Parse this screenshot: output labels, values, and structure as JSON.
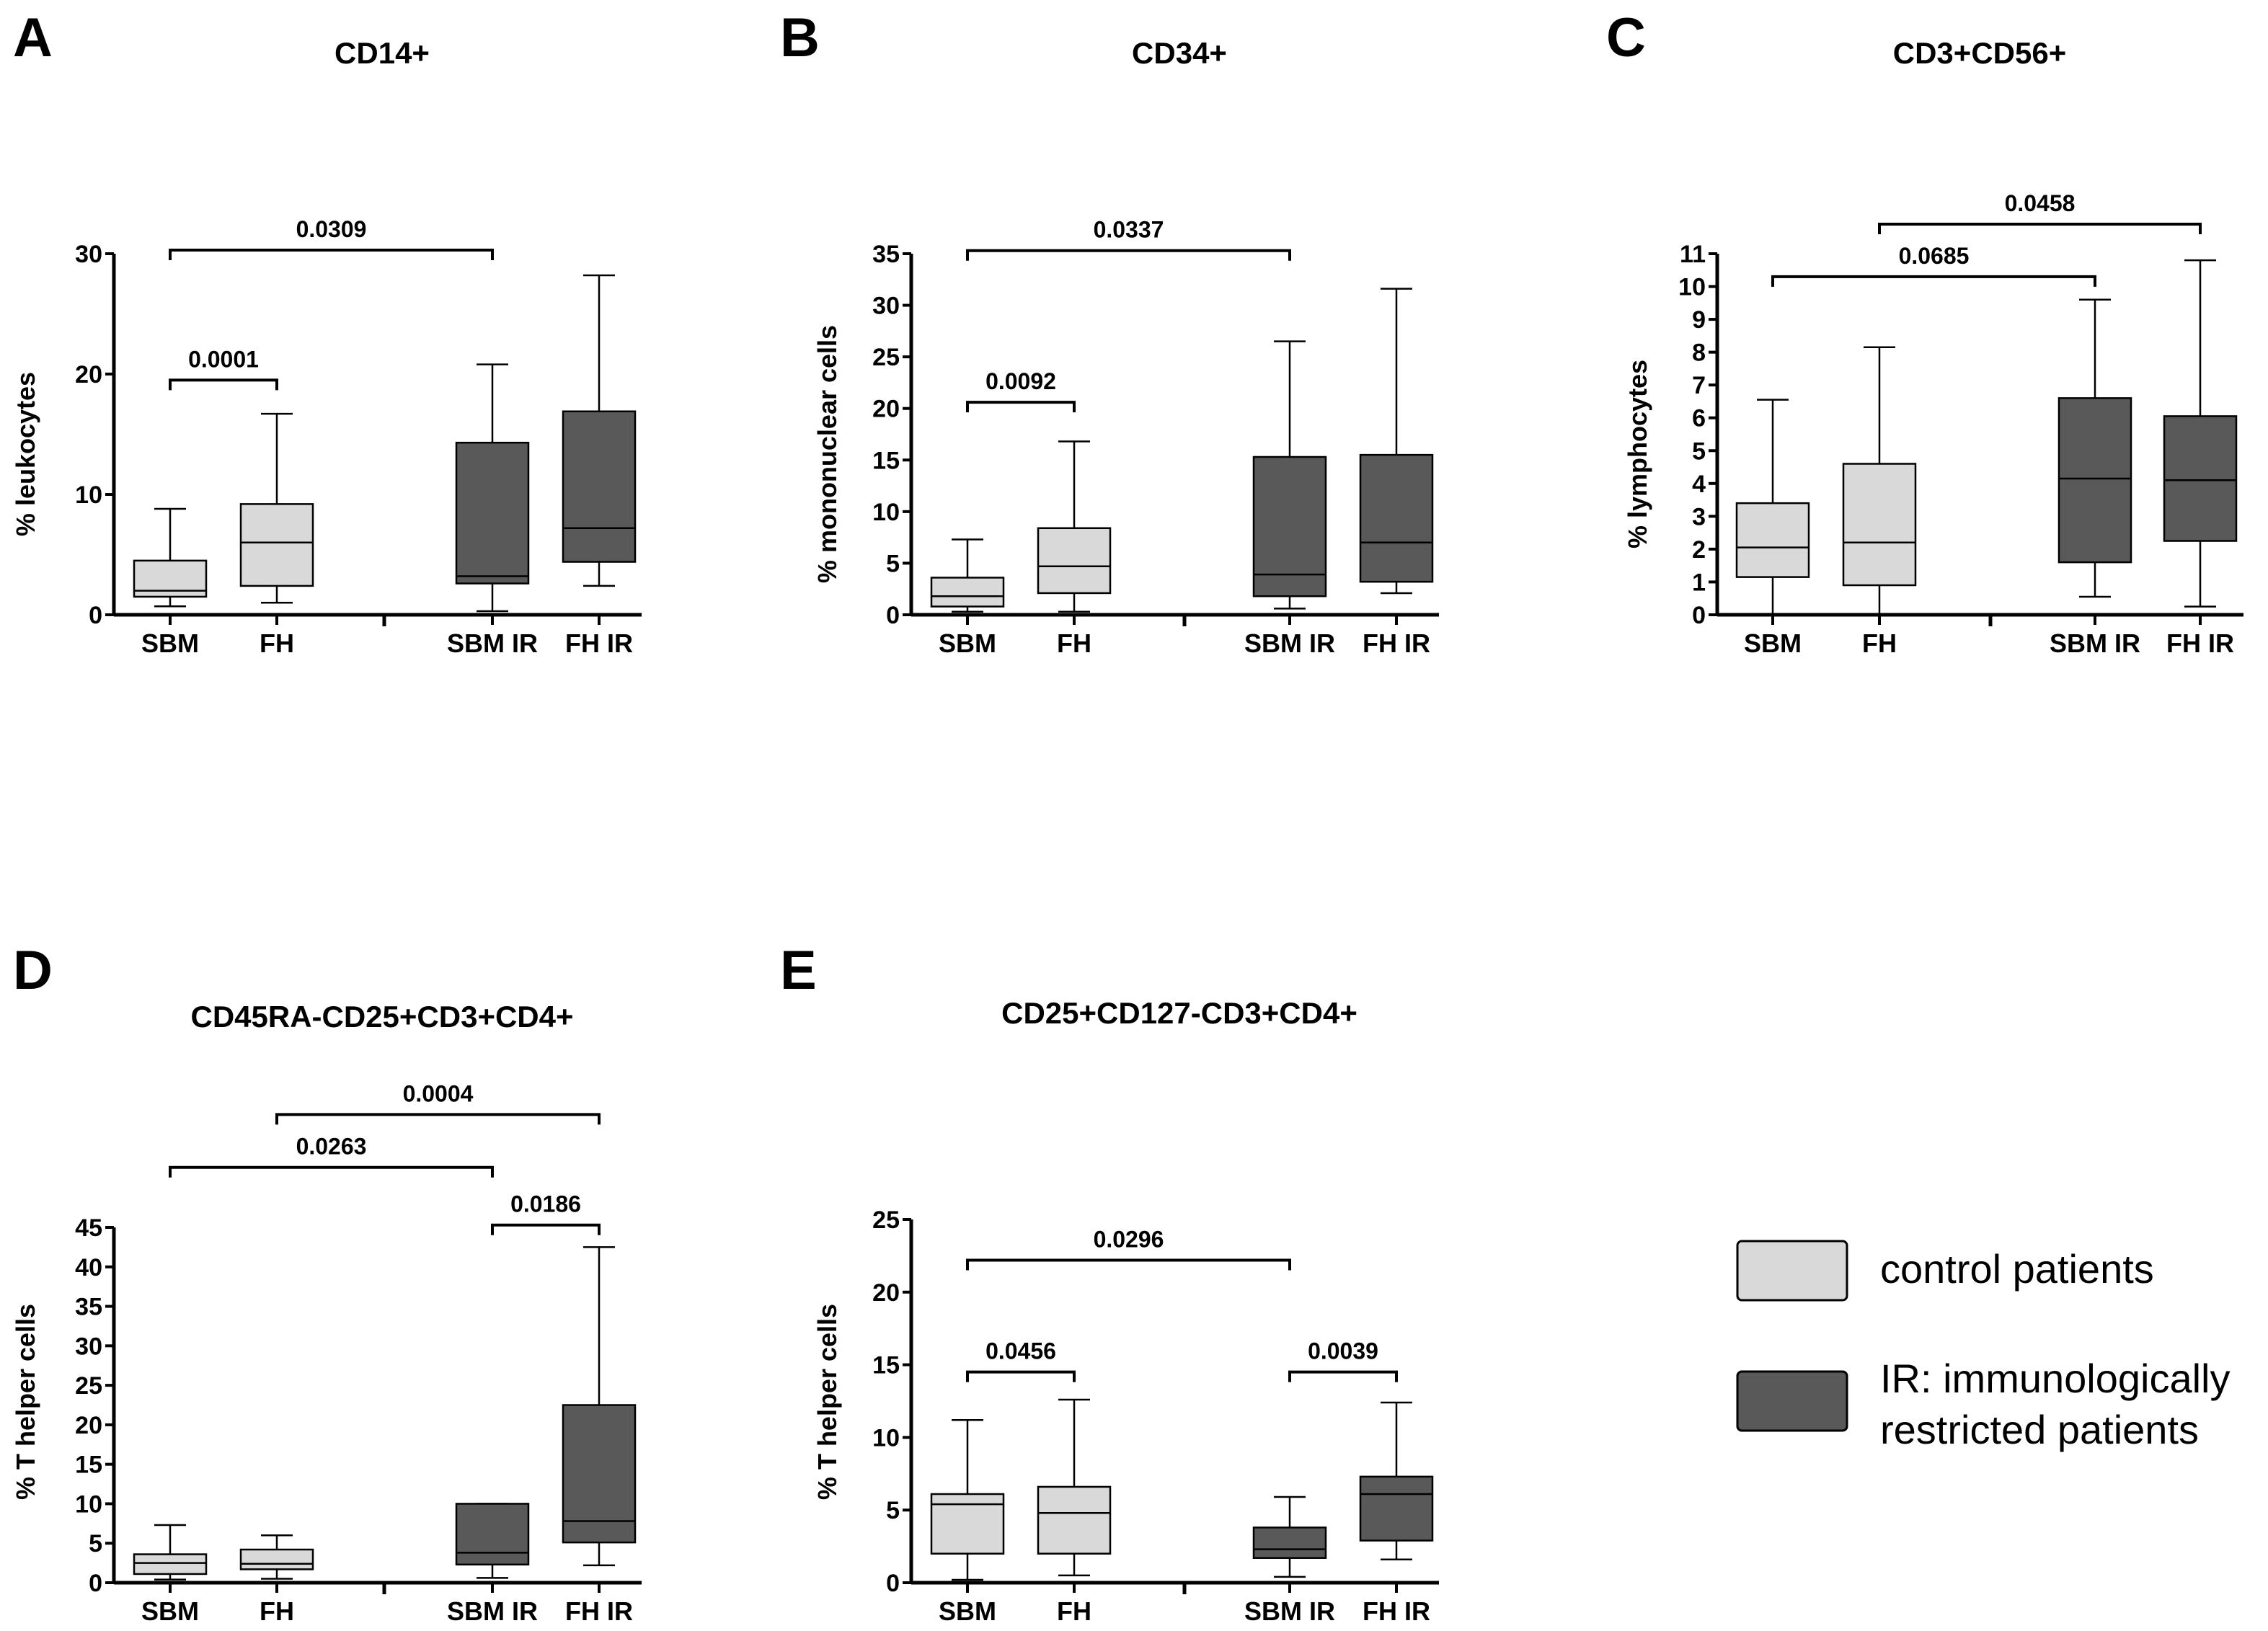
{
  "colors": {
    "control": "#d9d9d9",
    "ir": "#595959",
    "line": "#000000"
  },
  "legend": {
    "control_label": "control patients",
    "ir_label_line1": "IR: immunologically",
    "ir_label_line2": "restricted patients"
  },
  "chart_data": [
    {
      "panel": "A",
      "type": "boxplot",
      "title": "CD14+",
      "ylabel": "% leukocytes",
      "ylim": [
        0,
        30
      ],
      "yticks": [
        0,
        10,
        20,
        30
      ],
      "categories": [
        "SBM",
        "FH",
        "SBM IR",
        "FH IR"
      ],
      "groups": [
        "control",
        "control",
        "ir",
        "ir"
      ],
      "boxes": [
        {
          "min": 0.7,
          "q1": 1.5,
          "median": 2.0,
          "q3": 4.5,
          "max": 8.8
        },
        {
          "min": 1.0,
          "q1": 2.4,
          "median": 6.0,
          "q3": 9.2,
          "max": 16.7
        },
        {
          "min": 0.3,
          "q1": 2.6,
          "median": 3.2,
          "q3": 14.3,
          "max": 20.8
        },
        {
          "min": 2.4,
          "q1": 4.4,
          "median": 7.2,
          "q3": 16.9,
          "max": 28.2
        }
      ],
      "brackets": [
        {
          "from": 0,
          "to": 1,
          "y": 19.5,
          "label": "0.0001"
        },
        {
          "from": 0,
          "to": 2,
          "y": 30.3,
          "label": "0.0309"
        }
      ]
    },
    {
      "panel": "B",
      "type": "boxplot",
      "title": "CD34+",
      "ylabel": "% mononuclear cells",
      "ylim": [
        0,
        35
      ],
      "yticks": [
        0,
        5,
        10,
        15,
        20,
        25,
        30,
        35
      ],
      "categories": [
        "SBM",
        "FH",
        "SBM IR",
        "FH IR"
      ],
      "groups": [
        "control",
        "control",
        "ir",
        "ir"
      ],
      "boxes": [
        {
          "min": 0.3,
          "q1": 0.8,
          "median": 1.8,
          "q3": 3.6,
          "max": 7.3
        },
        {
          "min": 0.3,
          "q1": 2.1,
          "median": 4.7,
          "q3": 8.4,
          "max": 16.8
        },
        {
          "min": 0.6,
          "q1": 1.8,
          "median": 3.9,
          "q3": 15.3,
          "max": 26.5
        },
        {
          "min": 2.1,
          "q1": 3.2,
          "median": 7.0,
          "q3": 15.5,
          "max": 31.6
        }
      ],
      "brackets": [
        {
          "from": 0,
          "to": 1,
          "y": 20.6,
          "label": "0.0092"
        },
        {
          "from": 0,
          "to": 2,
          "y": 35.3,
          "label": "0.0337"
        }
      ]
    },
    {
      "panel": "C",
      "type": "boxplot",
      "title": "CD3+CD56+",
      "ylabel": "% lymphocytes",
      "ylim": [
        0,
        11
      ],
      "yticks": [
        0,
        1,
        2,
        3,
        4,
        5,
        6,
        7,
        8,
        9,
        10,
        11
      ],
      "categories": [
        "SBM",
        "FH",
        "SBM IR",
        "FH IR"
      ],
      "groups": [
        "control",
        "control",
        "ir",
        "ir"
      ],
      "boxes": [
        {
          "min": 0.0,
          "q1": 1.15,
          "median": 2.05,
          "q3": 3.4,
          "max": 6.55
        },
        {
          "min": 0.0,
          "q1": 0.9,
          "median": 2.2,
          "q3": 4.6,
          "max": 8.15
        },
        {
          "min": 0.55,
          "q1": 1.6,
          "median": 4.15,
          "q3": 6.6,
          "max": 9.6
        },
        {
          "min": 0.25,
          "q1": 2.25,
          "median": 4.1,
          "q3": 6.05,
          "max": 10.8
        }
      ],
      "brackets": [
        {
          "from": 0,
          "to": 2,
          "y": 10.3,
          "label": "0.0685"
        },
        {
          "from": 1,
          "to": 3,
          "y": 11.9,
          "label": "0.0458"
        }
      ]
    },
    {
      "panel": "D",
      "type": "boxplot",
      "title": "CD45RA-CD25+CD3+CD4+",
      "ylabel": "% T helper cells",
      "ylim": [
        0,
        45
      ],
      "yticks": [
        0,
        5,
        10,
        15,
        20,
        25,
        30,
        35,
        40,
        45
      ],
      "categories": [
        "SBM",
        "FH",
        "SBM IR",
        "FH IR"
      ],
      "groups": [
        "control",
        "control",
        "ir",
        "ir"
      ],
      "boxes": [
        {
          "min": 0.4,
          "q1": 1.1,
          "median": 2.5,
          "q3": 3.6,
          "max": 7.3
        },
        {
          "min": 0.5,
          "q1": 1.7,
          "median": 2.4,
          "q3": 4.2,
          "max": 6.0
        },
        {
          "min": 0.6,
          "q1": 2.3,
          "median": 3.8,
          "q3": 10.0,
          "max": 10.0
        },
        {
          "min": 2.2,
          "q1": 5.1,
          "median": 7.8,
          "q3": 22.5,
          "max": 42.5
        }
      ],
      "brackets": [
        {
          "from": 2,
          "to": 3,
          "y": 45.3,
          "label": "0.0186"
        },
        {
          "from": 0,
          "to": 2,
          "y": 52.6,
          "label": "0.0263"
        },
        {
          "from": 1,
          "to": 3,
          "y": 59.3,
          "label": "0.0004"
        }
      ]
    },
    {
      "panel": "E",
      "type": "boxplot",
      "title": "CD25+CD127-CD3+CD4+",
      "ylabel": "% T helper cells",
      "ylim": [
        0,
        25
      ],
      "yticks": [
        0,
        5,
        10,
        15,
        20,
        25
      ],
      "categories": [
        "SBM",
        "FH",
        "SBM IR",
        "FH IR"
      ],
      "groups": [
        "control",
        "control",
        "ir",
        "ir"
      ],
      "boxes": [
        {
          "min": 0.2,
          "q1": 2.0,
          "median": 5.4,
          "q3": 6.1,
          "max": 11.2
        },
        {
          "min": 0.5,
          "q1": 2.0,
          "median": 4.8,
          "q3": 6.6,
          "max": 12.6
        },
        {
          "min": 0.4,
          "q1": 1.7,
          "median": 2.3,
          "q3": 3.8,
          "max": 5.9
        },
        {
          "min": 1.6,
          "q1": 2.9,
          "median": 6.1,
          "q3": 7.3,
          "max": 12.4
        }
      ],
      "brackets": [
        {
          "from": 0,
          "to": 1,
          "y": 14.5,
          "label": "0.0456"
        },
        {
          "from": 2,
          "to": 3,
          "y": 14.5,
          "label": "0.0039"
        },
        {
          "from": 0,
          "to": 2,
          "y": 22.2,
          "label": "0.0296"
        }
      ]
    }
  ]
}
